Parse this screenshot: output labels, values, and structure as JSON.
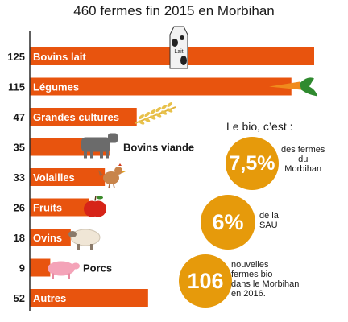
{
  "title": "460 fermes fin 2015 en Morbihan",
  "colors": {
    "bar": "#e8540e",
    "axis": "#2b2b2b",
    "circle": "#e69a0b",
    "bar_label": "#ffffff",
    "value_label": "#1a1a1a"
  },
  "chart_data": {
    "type": "bar",
    "orientation": "horizontal",
    "title": "460 fermes fin 2015 en Morbihan",
    "categories": [
      "Bovins lait",
      "Légumes",
      "Grandes cultures",
      "Bovins viande",
      "Volailles",
      "Fruits",
      "Ovins",
      "Porcs",
      "Autres"
    ],
    "values": [
      125,
      115,
      47,
      35,
      33,
      26,
      18,
      9,
      52
    ],
    "label_position": [
      "inside",
      "inside",
      "inside",
      "outside",
      "inside",
      "inside",
      "inside",
      "outside",
      "inside"
    ],
    "icons": [
      "milk-carton-icon",
      "carrot-icon",
      "wheat-icon",
      "cow-icon",
      "chicken-icon",
      "apple-icon",
      "sheep-icon",
      "pig-icon",
      ""
    ],
    "xlim": [
      0,
      125
    ],
    "grid": false,
    "legend": "none"
  },
  "bio": {
    "heading": "Le bio, c’est :",
    "facts": [
      {
        "value": "7,5%",
        "text": [
          "des fermes",
          "du",
          "Morbihan"
        ]
      },
      {
        "value": "6%",
        "text": [
          "de la",
          "SAU"
        ]
      },
      {
        "value": "106",
        "text": [
          "nouvelles",
          "fermes bio",
          "dans le Morbihan",
          "en 2016."
        ]
      }
    ]
  }
}
